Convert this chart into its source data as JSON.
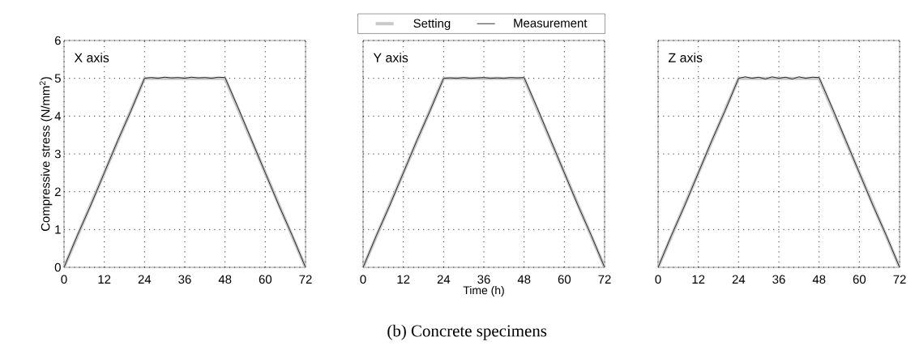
{
  "chart_data": [
    {
      "type": "line",
      "title": "X axis",
      "ylabel": "Compressive stress (N/mm$^{2}$)",
      "xlim": [
        0,
        72
      ],
      "ylim": [
        0,
        6
      ],
      "xticks": [
        0,
        12,
        24,
        36,
        48,
        60,
        72
      ],
      "yticks": [
        0,
        1,
        2,
        3,
        4,
        5,
        6
      ],
      "grid": true,
      "legend": false,
      "series": [
        {
          "color": "#c8c8c8",
          "x": [
            0,
            24,
            48,
            72
          ],
          "values": [
            0,
            5,
            5,
            0
          ]
        },
        {
          "color": "#000000",
          "x": [
            0,
            4,
            8,
            12,
            16,
            20,
            24,
            26,
            28,
            30,
            32,
            34,
            36,
            38,
            40,
            42,
            44,
            46,
            48,
            52,
            56,
            60,
            64,
            68,
            72
          ],
          "values": [
            0,
            0.85,
            1.65,
            2.5,
            3.35,
            4.15,
            5.0,
            5.02,
            5.0,
            5.03,
            5.01,
            5.02,
            5.0,
            5.03,
            5.01,
            5.02,
            5.0,
            5.03,
            5.02,
            4.2,
            3.35,
            2.5,
            1.65,
            0.85,
            0
          ]
        }
      ]
    },
    {
      "type": "line",
      "title": "Y axis",
      "xlabel": "Time (h)",
      "annotations": [
        "(b) Concrete specimens"
      ],
      "xlim": [
        0,
        72
      ],
      "ylim": [
        0,
        6
      ],
      "xticks": [
        0,
        12,
        24,
        36,
        48,
        60,
        72
      ],
      "yticks": [
        0,
        1,
        2,
        3,
        4,
        5,
        6
      ],
      "tick_labels": "x",
      "grid": true,
      "legend": "top",
      "series": [
        {
          "name": "Setting",
          "color": "#c8c8c8",
          "x": [
            0,
            24,
            48,
            72
          ],
          "values": [
            0,
            5,
            5,
            0
          ]
        },
        {
          "name": "Measurement",
          "color": "#000000",
          "x": [
            0,
            4,
            8,
            12,
            16,
            20,
            24,
            26,
            28,
            30,
            32,
            34,
            36,
            38,
            40,
            42,
            44,
            46,
            48,
            52,
            56,
            60,
            64,
            68,
            72
          ],
          "values": [
            0,
            0.85,
            1.65,
            2.5,
            3.35,
            4.15,
            5.0,
            5.01,
            5.0,
            5.02,
            5.0,
            5.01,
            5.02,
            5.0,
            5.01,
            5.0,
            5.02,
            5.01,
            5.02,
            4.2,
            3.35,
            2.5,
            1.65,
            0.85,
            0
          ]
        }
      ]
    },
    {
      "type": "line",
      "title": "Z axis",
      "xlim": [
        0,
        72
      ],
      "ylim": [
        0,
        6
      ],
      "xticks": [
        0,
        12,
        24,
        36,
        48,
        60,
        72
      ],
      "yticks": [
        0,
        1,
        2,
        3,
        4,
        5,
        6
      ],
      "tick_labels": "x",
      "grid": true,
      "legend": false,
      "series": [
        {
          "color": "#c8c8c8",
          "x": [
            0,
            24,
            48,
            72
          ],
          "values": [
            0,
            5,
            5,
            0
          ]
        },
        {
          "color": "#000000",
          "x": [
            0,
            4,
            8,
            12,
            16,
            20,
            24,
            26,
            28,
            30,
            32,
            34,
            36,
            38,
            40,
            42,
            44,
            46,
            48,
            52,
            56,
            60,
            64,
            68,
            72
          ],
          "values": [
            0,
            0.85,
            1.65,
            2.5,
            3.35,
            4.15,
            5.0,
            5.04,
            5.0,
            5.03,
            4.98,
            5.04,
            5.0,
            5.03,
            4.98,
            5.04,
            5.0,
            5.03,
            5.02,
            4.2,
            3.35,
            2.5,
            1.65,
            0.85,
            0
          ]
        }
      ]
    }
  ]
}
